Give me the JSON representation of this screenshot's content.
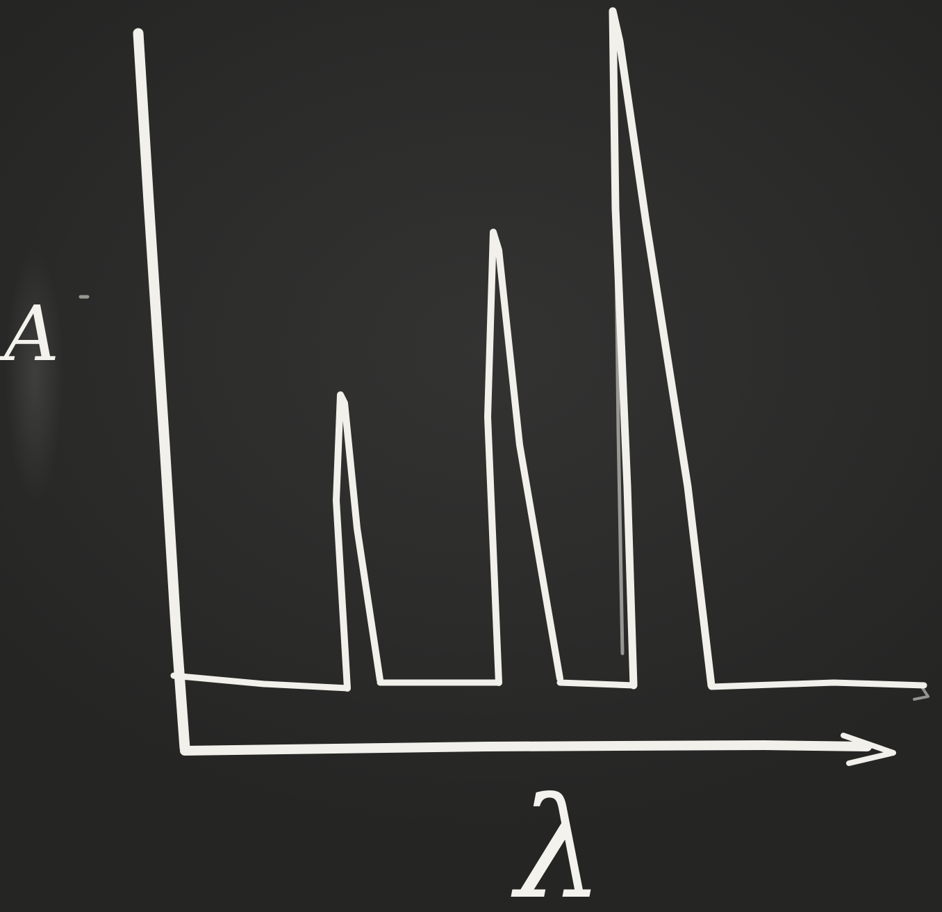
{
  "board": {
    "background": "#2a2a29",
    "chalk_color": "#f2f0ea"
  },
  "sketch": {
    "y_axis_label": "A",
    "x_axis_label": "λ",
    "peak_count": 3,
    "relative_peak_heights": [
      0.43,
      0.66,
      0.97
    ]
  }
}
